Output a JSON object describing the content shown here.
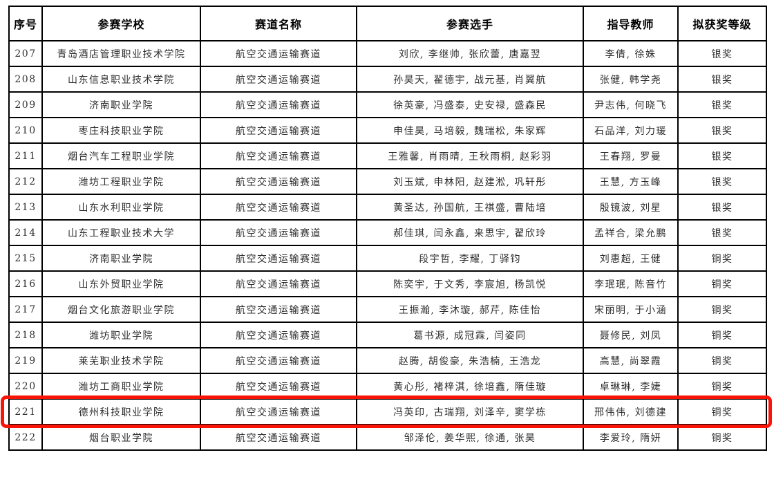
{
  "table": {
    "columns": [
      "序号",
      "参赛学校",
      "赛道名称",
      "参赛选手",
      "指导教师",
      "拟获奖等级"
    ],
    "rows": [
      {
        "no": "207",
        "school": "青岛酒店管理职业技术学院",
        "track": "航空交通运输赛道",
        "players": "刘欣, 李继帅, 张欣蕾, 唐嘉翌",
        "teachers": "李倩, 徐姝",
        "award": "银奖",
        "highlighted": false
      },
      {
        "no": "208",
        "school": "山东信息职业技术学院",
        "track": "航空交通运输赛道",
        "players": "孙昊天, 翟德宇, 战元基, 肖翼航",
        "teachers": "张健, 韩学尧",
        "award": "银奖",
        "highlighted": false
      },
      {
        "no": "209",
        "school": "济南职业学院",
        "track": "航空交通运输赛道",
        "players": "徐英豪, 冯盛泰, 史安禄, 盛森民",
        "teachers": "尹志伟, 何晓飞",
        "award": "银奖",
        "highlighted": false
      },
      {
        "no": "210",
        "school": "枣庄科技职业学院",
        "track": "航空交通运输赛道",
        "players": "申佳昊, 马培毅, 魏瑞松, 朱家辉",
        "teachers": "石品洋, 刘力瑗",
        "award": "银奖",
        "highlighted": false
      },
      {
        "no": "211",
        "school": "烟台汽车工程职业学院",
        "track": "航空交通运输赛道",
        "players": "王雅馨, 肖雨晴, 王秋雨桐, 赵彩羽",
        "teachers": "王春翔, 罗曼",
        "award": "银奖",
        "highlighted": false
      },
      {
        "no": "212",
        "school": "潍坊工程职业学院",
        "track": "航空交通运输赛道",
        "players": "刘玉斌, 申林阳, 赵建淞, 巩轩彤",
        "teachers": "王慧, 方玉峰",
        "award": "银奖",
        "highlighted": false
      },
      {
        "no": "213",
        "school": "山东水利职业学院",
        "track": "航空交通运输赛道",
        "players": "黄圣达, 孙国航, 王祺盛, 曹陆培",
        "teachers": "殷镜波, 刘星",
        "award": "银奖",
        "highlighted": false
      },
      {
        "no": "214",
        "school": "山东工程职业技术大学",
        "track": "航空交通运输赛道",
        "players": "郝佳琪, 闫永鑫, 来思宇, 翟欣玲",
        "teachers": "孟祥合, 梁允鹏",
        "award": "银奖",
        "highlighted": false
      },
      {
        "no": "215",
        "school": "济南职业学院",
        "track": "航空交通运输赛道",
        "players": "段宇哲, 李耀, 丁驿钧",
        "teachers": "刘惠超, 王健",
        "award": "铜奖",
        "highlighted": false
      },
      {
        "no": "216",
        "school": "山东外贸职业学院",
        "track": "航空交通运输赛道",
        "players": "陈奕宇, 于文秀, 李宸旭, 杨凯悦",
        "teachers": "李珉珉, 陈音竹",
        "award": "铜奖",
        "highlighted": false
      },
      {
        "no": "217",
        "school": "烟台文化旅游职业学院",
        "track": "航空交通运输赛道",
        "players": "王振瀚, 李沐璇, 郝芹, 陈佳怡",
        "teachers": "宋丽明, 于小涵",
        "award": "铜奖",
        "highlighted": false
      },
      {
        "no": "218",
        "school": "潍坊职业学院",
        "track": "航空交通运输赛道",
        "players": "葛书源, 成冠霖, 闫姿同",
        "teachers": "聂修民, 刘凤",
        "award": "铜奖",
        "highlighted": false
      },
      {
        "no": "219",
        "school": "莱芜职业技术学院",
        "track": "航空交通运输赛道",
        "players": "赵腾, 胡俊豪, 朱浩楠, 王浩龙",
        "teachers": "高慧, 尚翠霞",
        "award": "铜奖",
        "highlighted": false
      },
      {
        "no": "220",
        "school": "潍坊工商职业学院",
        "track": "航空交通运输赛道",
        "players": "黄心彤, 褚梓淇, 徐培鑫, 隋佳璇",
        "teachers": "卓琳琳, 李婕",
        "award": "铜奖",
        "highlighted": false
      },
      {
        "no": "221",
        "school": "德州科技职业学院",
        "track": "航空交通运输赛道",
        "players": "冯英印, 古瑞翔, 刘泽辛, 窦学栋",
        "teachers": "邢伟伟, 刘德建",
        "award": "铜奖",
        "highlighted": true
      },
      {
        "no": "222",
        "school": "烟台职业学院",
        "track": "航空交通运输赛道",
        "players": "邹泽伦, 姜华熙, 徐通, 张昊",
        "teachers": "李爱玲, 隋妍",
        "award": "铜奖",
        "highlighted": false
      }
    ]
  },
  "highlight": {
    "color": "#fa1408",
    "row_no": "221"
  }
}
